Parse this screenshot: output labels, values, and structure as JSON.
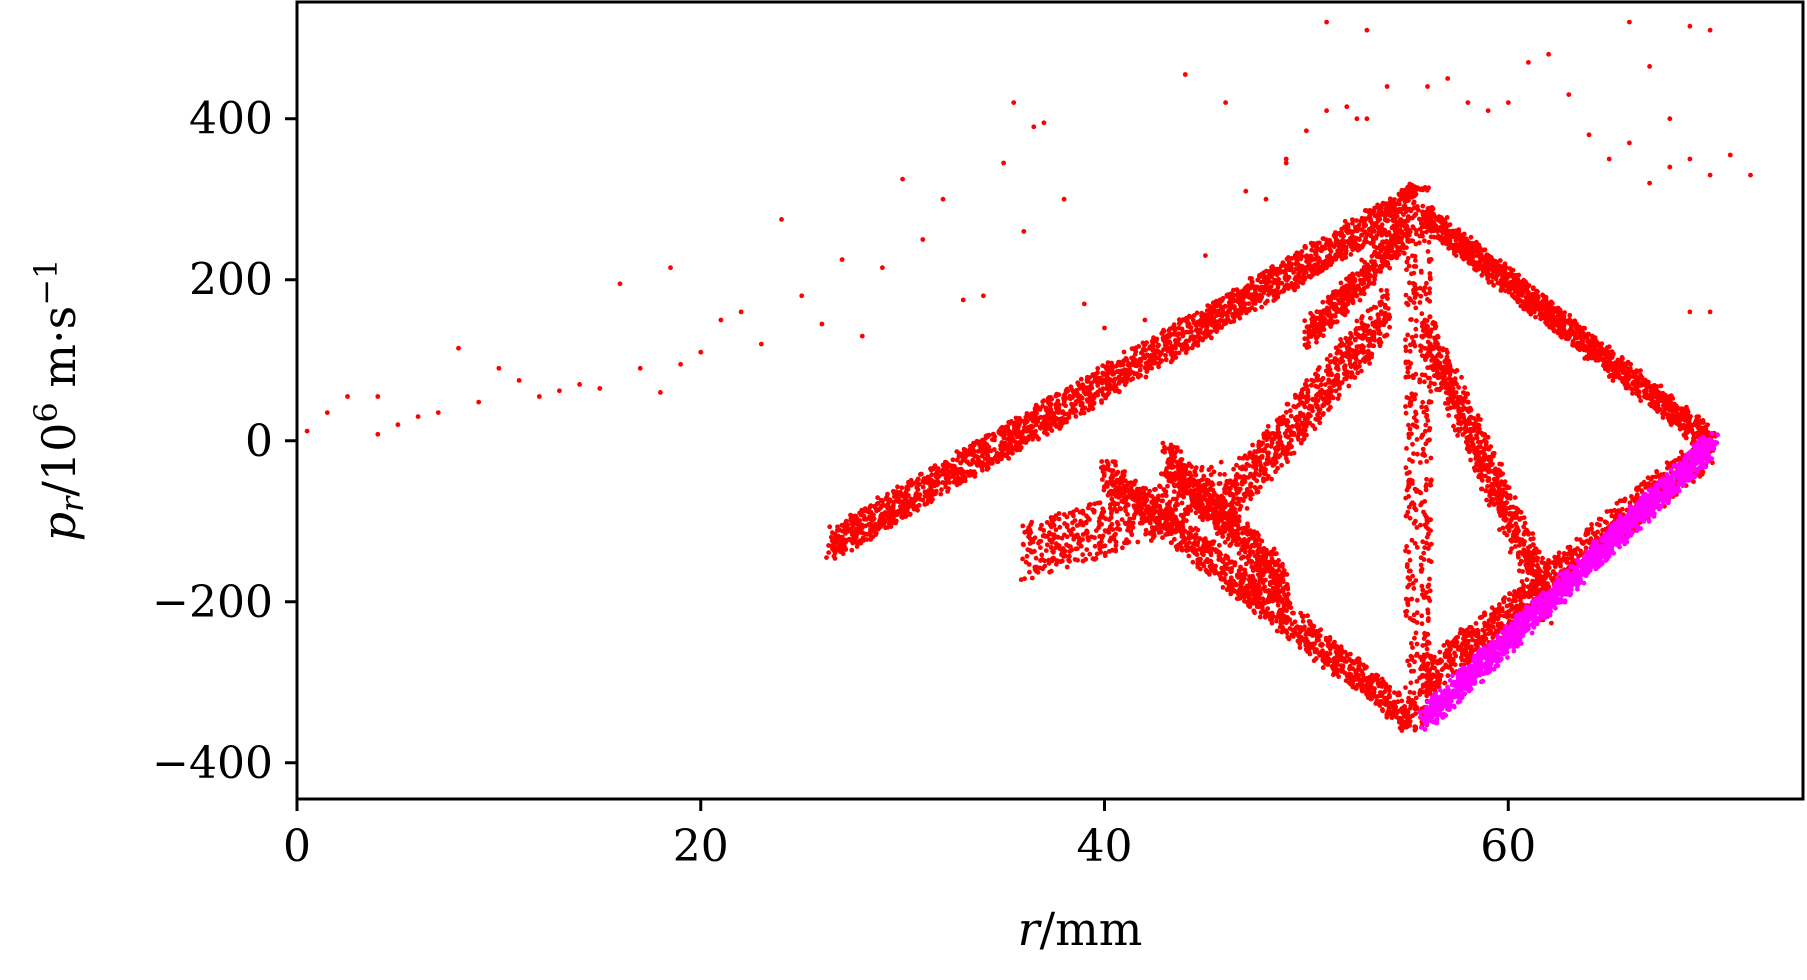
{
  "chart_data": {
    "type": "scatter",
    "title": "",
    "xlabel": "r/mm",
    "ylabel": "p_r/10^6 m·s^-1",
    "xlim": [
      0,
      74.6
    ],
    "ylim": [
      -445,
      545
    ],
    "xticks": [
      0,
      20,
      40,
      60
    ],
    "xtick_labels": [
      "0",
      "20",
      "40",
      "60"
    ],
    "yticks": [
      -400,
      -200,
      0,
      200,
      400
    ],
    "ytick_labels": [
      "−400",
      "−200",
      "0",
      "200",
      "400"
    ],
    "grid": false,
    "legend": "none",
    "colors": {
      "series1": "#ff0000",
      "series2": "#ff00ff"
    },
    "series": [
      {
        "color": "#ff0000",
        "marker_size": 2.4,
        "points": [
          [
            0.5,
            12
          ],
          [
            1.5,
            35
          ],
          [
            2.5,
            55
          ],
          [
            4,
            8
          ],
          [
            4,
            55
          ],
          [
            5,
            20
          ],
          [
            6,
            30
          ],
          [
            7,
            35
          ],
          [
            8,
            115
          ],
          [
            9,
            48
          ],
          [
            10,
            90
          ],
          [
            11,
            75
          ],
          [
            12,
            55
          ],
          [
            13,
            62
          ],
          [
            14,
            70
          ],
          [
            15,
            65
          ],
          [
            16,
            195
          ],
          [
            17,
            90
          ],
          [
            18,
            60
          ],
          [
            18.5,
            215
          ],
          [
            19,
            95
          ],
          [
            20,
            110
          ],
          [
            21,
            150
          ],
          [
            22,
            160
          ],
          [
            23,
            120
          ],
          [
            24,
            275
          ],
          [
            25,
            180
          ],
          [
            26,
            145
          ],
          [
            27,
            225
          ],
          [
            28,
            130
          ],
          [
            29,
            215
          ],
          [
            30,
            325
          ],
          [
            31,
            250
          ],
          [
            32,
            300
          ],
          [
            33,
            175
          ],
          [
            34,
            180
          ],
          [
            35,
            345
          ],
          [
            36,
            260
          ],
          [
            37,
            395
          ],
          [
            38,
            300
          ],
          [
            39,
            170
          ],
          [
            40,
            140
          ],
          [
            42,
            150
          ],
          [
            44,
            455
          ],
          [
            45,
            230
          ],
          [
            46,
            420
          ],
          [
            47,
            310
          ],
          [
            48,
            300
          ],
          [
            49,
            345
          ],
          [
            50,
            385
          ],
          [
            51,
            410
          ],
          [
            52,
            415
          ],
          [
            53,
            400
          ],
          [
            51,
            520
          ],
          [
            53,
            510
          ],
          [
            56,
            440
          ],
          [
            57,
            450
          ],
          [
            58,
            420
          ],
          [
            59,
            410
          ],
          [
            60,
            420
          ],
          [
            61,
            470
          ],
          [
            62,
            480
          ],
          [
            63,
            430
          ],
          [
            64,
            380
          ],
          [
            65,
            350
          ],
          [
            66,
            370
          ],
          [
            67,
            320
          ],
          [
            68,
            340
          ],
          [
            69,
            350
          ],
          [
            70,
            330
          ],
          [
            71,
            355
          ],
          [
            72,
            330
          ],
          [
            69,
            515
          ],
          [
            70,
            510
          ],
          [
            66,
            520
          ],
          [
            67,
            465
          ],
          [
            68,
            400
          ],
          [
            69,
            160
          ],
          [
            70,
            160
          ],
          [
            35.5,
            420
          ],
          [
            36.5,
            390
          ],
          [
            54,
            440
          ],
          [
            52.5,
            400
          ],
          [
            49,
            350
          ]
        ],
        "regions": [
          {
            "name": "left-diagonal",
            "from": [
              26.5,
              -128
            ],
            "to": [
              55.4,
              300
            ],
            "spread": 40,
            "count": 2200
          },
          {
            "name": "right-upper-diagonal",
            "from": [
              55.8,
              280
            ],
            "to": [
              70,
              0
            ],
            "spread": 30,
            "count": 1300
          },
          {
            "name": "lower-left-diagonal",
            "from": [
              40,
              -40
            ],
            "to": [
              55.2,
              -345
            ],
            "spread": 40,
            "count": 1100
          },
          {
            "name": "lower-right-diagonal",
            "from": [
              55.8,
              -300
            ],
            "to": [
              70,
              -10
            ],
            "spread": 45,
            "count": 1000
          },
          {
            "name": "left-loop",
            "from": [
              43,
              -20
            ],
            "to": [
              49,
              -180
            ],
            "spread": 45,
            "count": 600
          },
          {
            "name": "inner-left",
            "from": [
              46,
              -80
            ],
            "to": [
              54,
              160
            ],
            "spread": 60,
            "count": 700
          },
          {
            "name": "inner-right",
            "from": [
              56,
              130
            ],
            "to": [
              62,
              -200
            ],
            "spread": 60,
            "count": 700
          },
          {
            "name": "center-column-left",
            "from": [
              55.2,
              -360
            ],
            "to": [
              55.2,
              320
            ],
            "spread": 4,
            "count": 220
          },
          {
            "name": "center-column-right",
            "from": [
              55.9,
              -355
            ],
            "to": [
              55.9,
              320
            ],
            "spread": 4,
            "count": 220
          },
          {
            "name": "upper-wedge",
            "from": [
              50,
              130
            ],
            "to": [
              55,
              260
            ],
            "spread": 35,
            "count": 400
          },
          {
            "name": "lower-left-fill",
            "from": [
              36,
              -140
            ],
            "to": [
              46,
              -60
            ],
            "spread": 70,
            "count": 500
          }
        ]
      },
      {
        "color": "#ff00ff",
        "marker_size": 2.4,
        "points": [],
        "regions": [
          {
            "name": "magenta-band",
            "from": [
              55.9,
              -345
            ],
            "to": [
              70.1,
              -5
            ],
            "spread": 30,
            "count": 1600
          }
        ]
      }
    ]
  }
}
